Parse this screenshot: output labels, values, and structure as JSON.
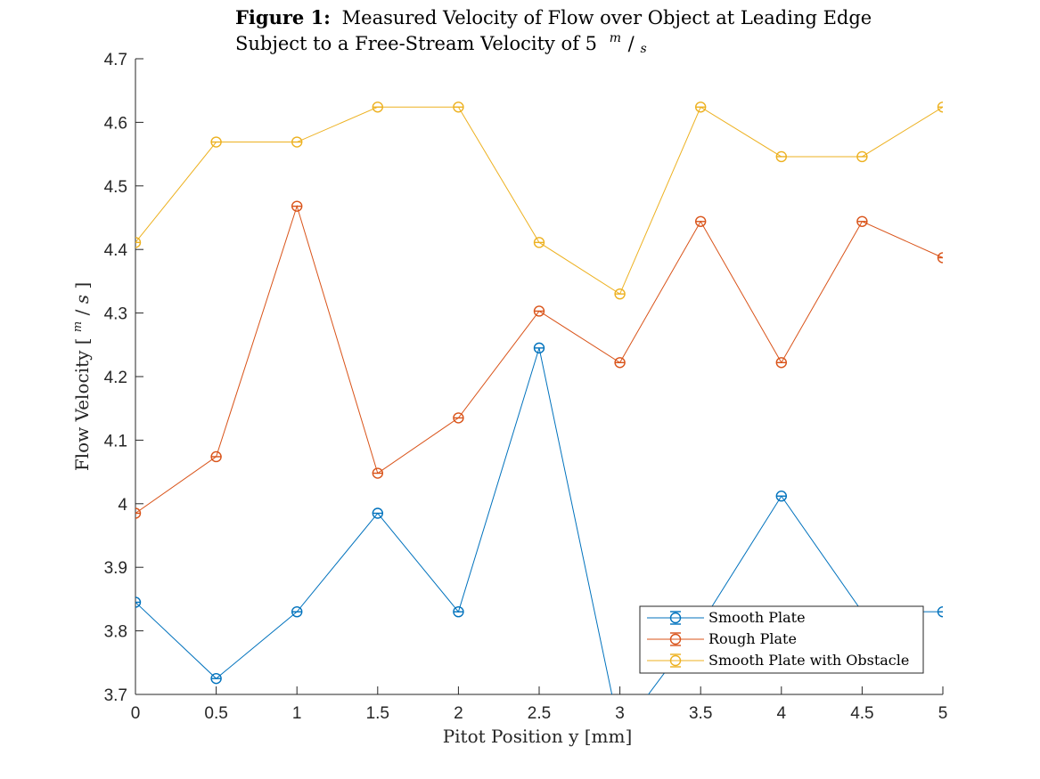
{
  "chart_data": {
    "type": "line",
    "title_bold": "Figure 1:",
    "title_line1": "Measured Velocity of Flow over Object at Leading Edge",
    "title_line2_prefix": "Subject to a Free-Stream Velocity of 5",
    "unit_numerator": "m",
    "unit_slash": "/",
    "unit_denominator": "s",
    "xlabel": "Pitot Position y [mm]",
    "ylabel_prefix": "Flow Velocity [",
    "ylabel_suffix": "]",
    "xlim": [
      0,
      5
    ],
    "ylim": [
      3.7,
      4.7
    ],
    "xticks": [
      "0",
      "0.5",
      "1",
      "1.5",
      "2",
      "2.5",
      "3",
      "3.5",
      "4",
      "4.5",
      "5"
    ],
    "yticks": [
      "3.7",
      "3.8",
      "3.9",
      "4",
      "4.1",
      "4.2",
      "4.3",
      "4.4",
      "4.5",
      "4.6",
      "4.7"
    ],
    "x": [
      0,
      0.5,
      1,
      1.5,
      2,
      2.5,
      3,
      3.5,
      4,
      4.5,
      5
    ],
    "grid": false,
    "legend_position": "bottom-right",
    "series": [
      {
        "name": "Smooth Plate",
        "color": "#0072BD",
        "values": [
          3.845,
          3.725,
          3.83,
          3.985,
          3.83,
          4.245,
          3.64,
          3.81,
          4.012,
          3.83,
          3.83
        ]
      },
      {
        "name": "Rough Plate",
        "color": "#D95319",
        "values": [
          3.985,
          4.074,
          4.468,
          4.048,
          4.135,
          4.303,
          4.222,
          4.444,
          4.222,
          4.444,
          4.387
        ]
      },
      {
        "name": "Smooth Plate with Obstacle",
        "color": "#EDB120",
        "values": [
          4.411,
          4.569,
          4.569,
          4.624,
          4.624,
          4.411,
          4.33,
          4.624,
          4.546,
          4.546,
          4.624
        ]
      }
    ]
  }
}
